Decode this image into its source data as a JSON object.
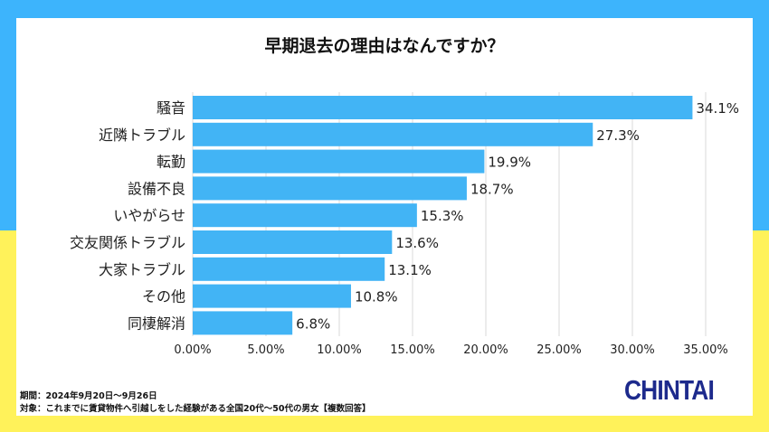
{
  "colors": {
    "bar": "#42b4f5",
    "top_bg": "#3db4fc",
    "bottom_bg": "#fff25a",
    "logo": "#1d2a8c"
  },
  "chart_data": {
    "type": "bar",
    "orientation": "horizontal",
    "title": "早期退去の理由はなんですか？",
    "categories": [
      "騒音",
      "近隣トラブル",
      "転勤",
      "設備不良",
      "いやがらせ",
      "交友関係トラブル",
      "大家トラブル",
      "その他",
      "同棲解消"
    ],
    "values": [
      34.1,
      27.3,
      19.9,
      18.7,
      15.3,
      13.6,
      13.1,
      10.8,
      6.8
    ],
    "data_labels": [
      "34.1%",
      "27.3%",
      "19.9%",
      "18.7%",
      "15.3%",
      "13.6%",
      "13.1%",
      "10.8%",
      "6.8%"
    ],
    "xlim": [
      0,
      35
    ],
    "x_ticks": [
      "0.00%",
      "5.00%",
      "10.00%",
      "15.00%",
      "20.00%",
      "25.00%",
      "30.00%",
      "35.00%"
    ],
    "grid": true
  },
  "footer": {
    "period": "期間：2024年9月20日～9月26日",
    "target": "対象：これまでに賃貸物件へ引越しをした経験がある全国20代～50代の男女【複数回答】"
  },
  "logo": "CHINTAI"
}
